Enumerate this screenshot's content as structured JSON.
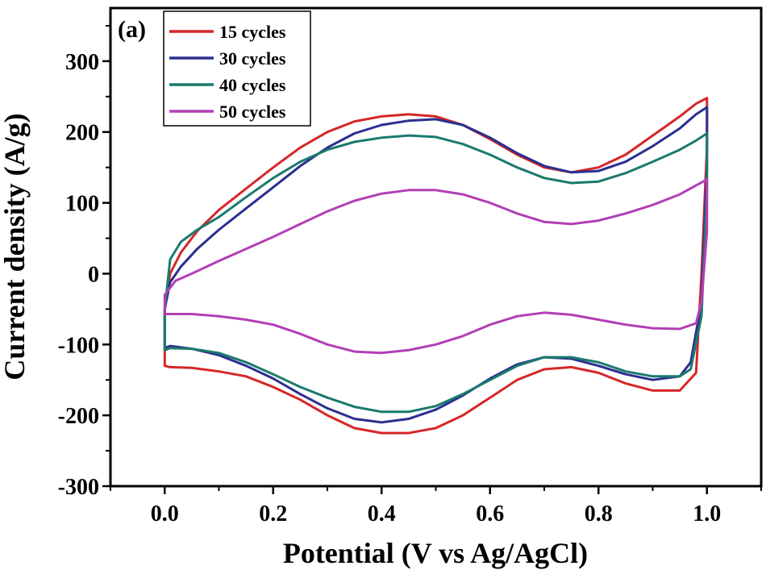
{
  "chart_data": {
    "type": "line",
    "panel_label": "(a)",
    "title": "",
    "xlabel": "Potential (V vs Ag/AgCl)",
    "ylabel": "Current density (A/g)",
    "xlim": [
      -0.1,
      1.1
    ],
    "ylim": [
      -300,
      375
    ],
    "xticks": [
      0.0,
      0.2,
      0.4,
      0.6,
      0.8,
      1.0
    ],
    "xtick_labels": [
      "0.0",
      "0.2",
      "0.4",
      "0.6",
      "0.8",
      "1.0"
    ],
    "yticks": [
      -300,
      -200,
      -100,
      0,
      100,
      200,
      300
    ],
    "ytick_labels": [
      "-300",
      "-200",
      "-100",
      "0",
      "100",
      "200",
      "300"
    ],
    "grid": false,
    "legend_position": "top-left",
    "series": [
      {
        "name": "15 cycles",
        "color": "#d62728",
        "x": [
          0.0,
          0.01,
          0.03,
          0.06,
          0.1,
          0.15,
          0.2,
          0.25,
          0.3,
          0.35,
          0.4,
          0.45,
          0.5,
          0.55,
          0.6,
          0.65,
          0.7,
          0.75,
          0.8,
          0.85,
          0.9,
          0.95,
          0.98,
          1.0,
          1.0,
          0.99,
          0.98,
          0.95,
          0.9,
          0.85,
          0.8,
          0.75,
          0.7,
          0.65,
          0.6,
          0.55,
          0.5,
          0.45,
          0.4,
          0.35,
          0.3,
          0.25,
          0.2,
          0.15,
          0.1,
          0.05,
          0.01,
          0.0,
          0.0
        ],
        "y": [
          -50,
          0,
          30,
          60,
          90,
          120,
          150,
          178,
          200,
          215,
          222,
          225,
          222,
          210,
          190,
          168,
          150,
          143,
          150,
          168,
          195,
          222,
          240,
          248,
          180,
          0,
          -140,
          -165,
          -165,
          -155,
          -140,
          -132,
          -135,
          -150,
          -175,
          -200,
          -218,
          -225,
          -225,
          -218,
          -200,
          -178,
          -160,
          -145,
          -138,
          -133,
          -132,
          -130,
          -50
        ]
      },
      {
        "name": "30 cycles",
        "color": "#2b2f8f",
        "x": [
          0.0,
          0.01,
          0.03,
          0.06,
          0.1,
          0.15,
          0.2,
          0.25,
          0.3,
          0.35,
          0.4,
          0.45,
          0.5,
          0.55,
          0.6,
          0.65,
          0.7,
          0.75,
          0.8,
          0.85,
          0.9,
          0.95,
          0.98,
          1.0,
          1.0,
          0.99,
          0.97,
          0.95,
          0.9,
          0.85,
          0.8,
          0.75,
          0.7,
          0.65,
          0.6,
          0.55,
          0.5,
          0.45,
          0.4,
          0.35,
          0.3,
          0.25,
          0.2,
          0.15,
          0.1,
          0.05,
          0.01,
          0.0,
          0.0
        ],
        "y": [
          -50,
          -12,
          10,
          35,
          62,
          92,
          122,
          152,
          178,
          198,
          210,
          216,
          218,
          210,
          192,
          170,
          152,
          143,
          145,
          158,
          180,
          205,
          225,
          235,
          150,
          -40,
          -125,
          -145,
          -150,
          -142,
          -130,
          -120,
          -118,
          -128,
          -148,
          -172,
          -192,
          -205,
          -210,
          -205,
          -190,
          -170,
          -148,
          -130,
          -115,
          -106,
          -102,
          -105,
          -50
        ]
      },
      {
        "name": "40 cycles",
        "color": "#1b7a6e",
        "x": [
          0.0,
          0.01,
          0.03,
          0.06,
          0.1,
          0.15,
          0.2,
          0.25,
          0.3,
          0.35,
          0.4,
          0.45,
          0.5,
          0.55,
          0.6,
          0.65,
          0.7,
          0.75,
          0.8,
          0.85,
          0.9,
          0.95,
          0.98,
          1.0,
          1.0,
          0.99,
          0.97,
          0.95,
          0.9,
          0.85,
          0.8,
          0.75,
          0.7,
          0.65,
          0.6,
          0.55,
          0.5,
          0.45,
          0.4,
          0.35,
          0.3,
          0.25,
          0.2,
          0.15,
          0.1,
          0.05,
          0.01,
          0.0,
          0.0
        ],
        "y": [
          -50,
          20,
          45,
          62,
          80,
          108,
          135,
          158,
          175,
          186,
          192,
          195,
          193,
          183,
          168,
          150,
          135,
          128,
          130,
          142,
          158,
          175,
          188,
          198,
          120,
          -60,
          -135,
          -145,
          -145,
          -138,
          -125,
          -118,
          -118,
          -130,
          -150,
          -170,
          -187,
          -195,
          -195,
          -188,
          -175,
          -160,
          -142,
          -125,
          -112,
          -106,
          -105,
          -108,
          -50
        ]
      },
      {
        "name": "50 cycles",
        "color": "#b23fb5",
        "x": [
          0.0,
          0.02,
          0.05,
          0.1,
          0.15,
          0.2,
          0.25,
          0.3,
          0.35,
          0.4,
          0.45,
          0.5,
          0.55,
          0.6,
          0.65,
          0.7,
          0.75,
          0.8,
          0.85,
          0.9,
          0.95,
          1.0,
          1.0,
          0.99,
          0.98,
          0.95,
          0.9,
          0.85,
          0.8,
          0.75,
          0.7,
          0.65,
          0.6,
          0.55,
          0.5,
          0.45,
          0.4,
          0.35,
          0.3,
          0.25,
          0.2,
          0.15,
          0.1,
          0.05,
          0.0,
          0.0
        ],
        "y": [
          -30,
          -10,
          0,
          18,
          35,
          52,
          70,
          88,
          103,
          113,
          118,
          118,
          112,
          100,
          85,
          73,
          70,
          75,
          85,
          97,
          112,
          133,
          60,
          -40,
          -70,
          -78,
          -77,
          -72,
          -65,
          -58,
          -55,
          -60,
          -72,
          -88,
          -100,
          -108,
          -112,
          -110,
          -100,
          -85,
          -72,
          -65,
          -60,
          -57,
          -57,
          -30
        ]
      }
    ]
  }
}
